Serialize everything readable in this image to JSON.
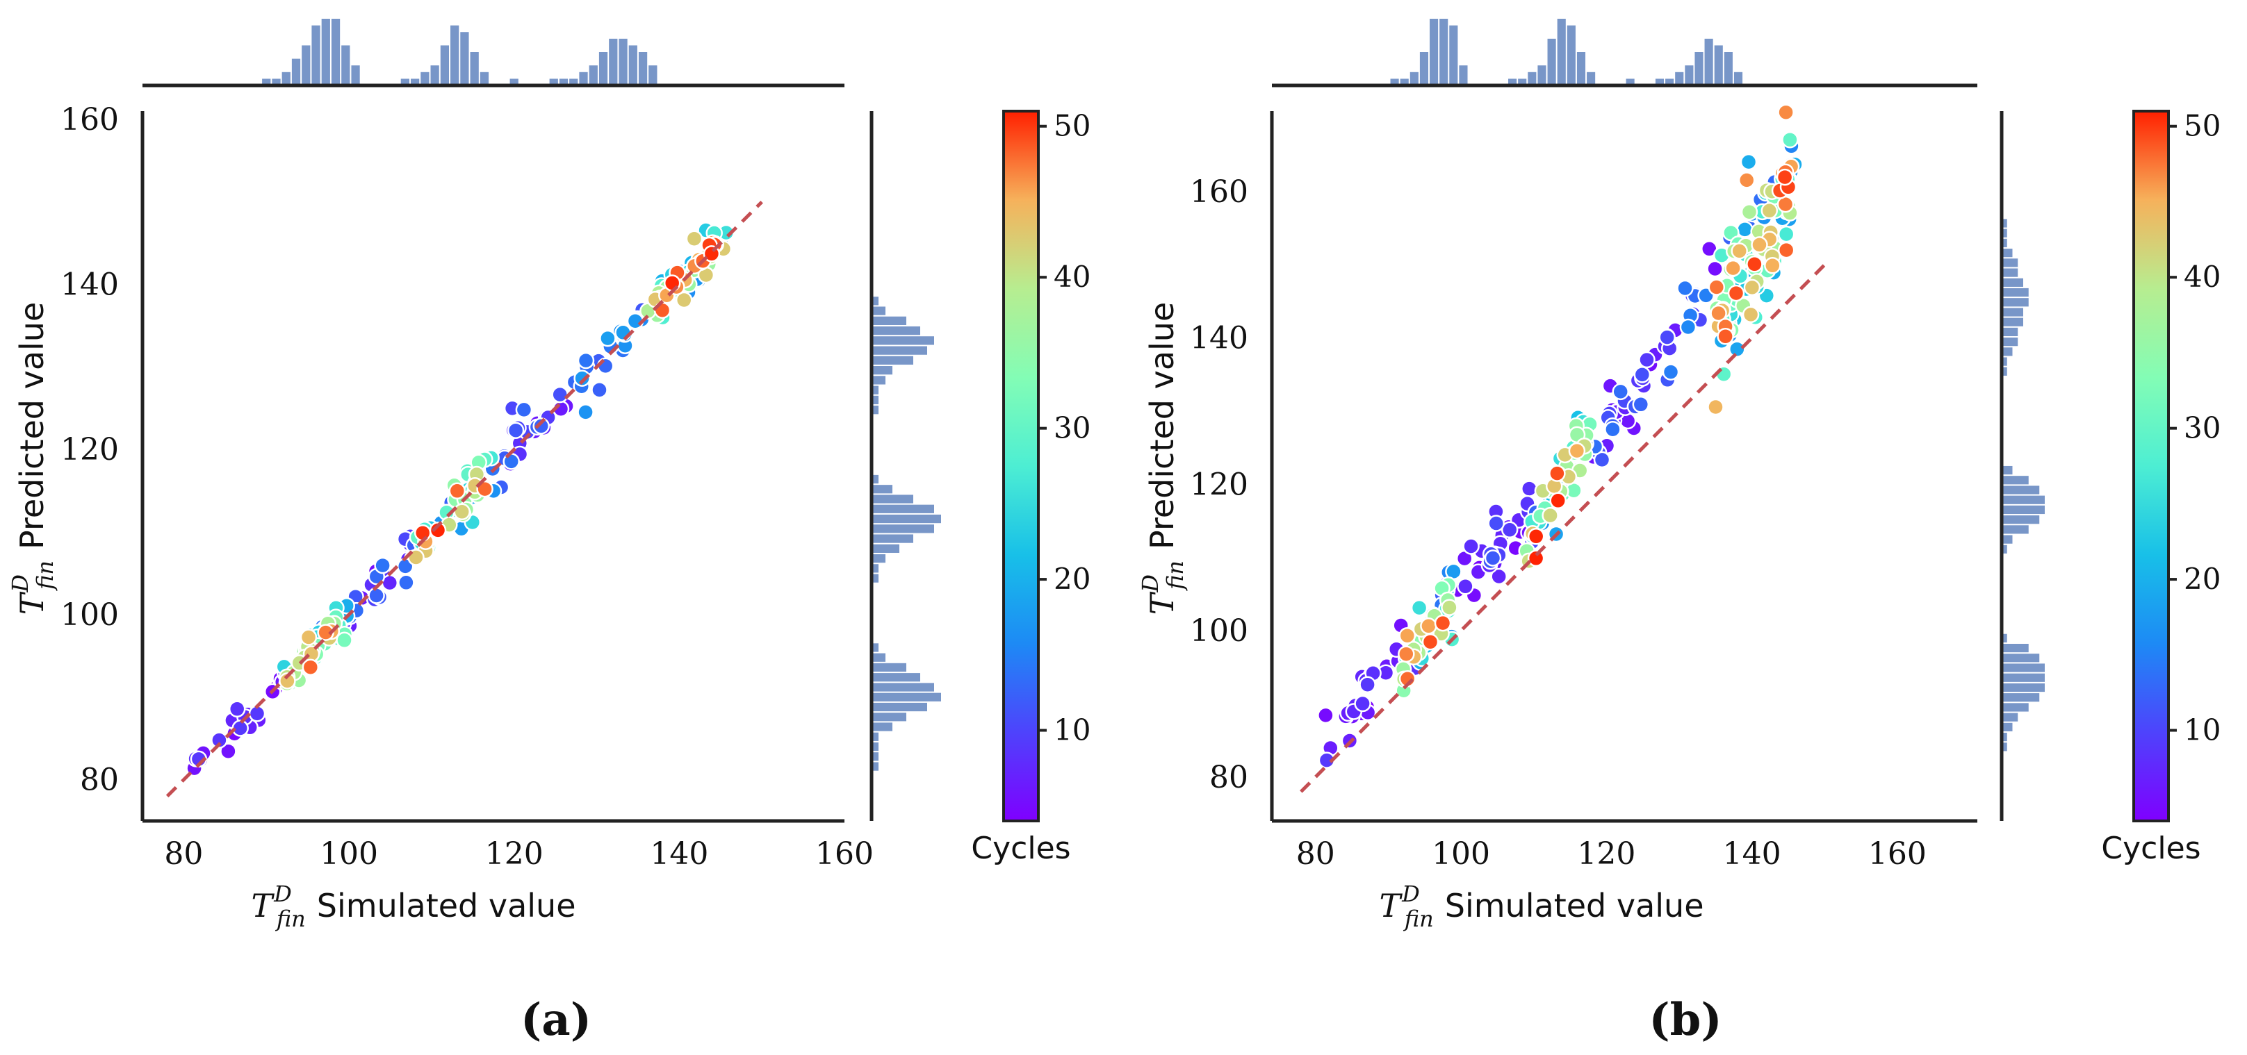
{
  "chart_data": [
    {
      "panel_label": "(a)",
      "type": "scatter",
      "xlabel_symbol": "T",
      "xlabel_sup": "D",
      "xlabel_sub": "fin",
      "xlabel_text": "Simulated value",
      "ylabel_symbol": "T",
      "ylabel_sup": "D",
      "ylabel_sub": "fin",
      "ylabel_text": "Predicted value",
      "xlim": [
        75,
        160
      ],
      "ylim": [
        75,
        161
      ],
      "xticks": [
        80,
        100,
        120,
        140,
        160
      ],
      "yticks": [
        80,
        100,
        120,
        140,
        160
      ],
      "reference_line": {
        "x": [
          78,
          150
        ],
        "y": [
          78,
          150
        ],
        "style": "dashed",
        "color": "#c44e52"
      },
      "colorbar": {
        "label": "Cycles",
        "range": [
          4,
          51
        ],
        "ticks": [
          10,
          20,
          30,
          40,
          50
        ]
      },
      "clusters": [
        {
          "x_range": [
            81,
            92
          ],
          "y_offset": 0,
          "spread": 1.0,
          "cycle_range": [
            4,
            9
          ],
          "count": 22
        },
        {
          "x_range": [
            92,
            100
          ],
          "y_offset": 0,
          "spread": 1.1,
          "cycle_range": [
            5,
            51
          ],
          "count": 60
        },
        {
          "x_range": [
            100,
            108
          ],
          "y_offset": 0,
          "spread": 1.4,
          "cycle_range": [
            5,
            14
          ],
          "count": 25
        },
        {
          "x_range": [
            108,
            118
          ],
          "y_offset": 0,
          "spread": 1.3,
          "cycle_range": [
            8,
            51
          ],
          "count": 55
        },
        {
          "x_range": [
            118,
            128
          ],
          "y_offset": 0,
          "spread": 1.8,
          "cycle_range": [
            6,
            14
          ],
          "count": 25
        },
        {
          "x_range": [
            128,
            136
          ],
          "y_offset": 0,
          "spread": 1.6,
          "cycle_range": [
            10,
            18
          ],
          "count": 25
        },
        {
          "x_range": [
            136,
            146
          ],
          "y_offset": 0,
          "spread": 1.2,
          "cycle_range": [
            16,
            51
          ],
          "count": 60
        }
      ],
      "top_hist": {
        "bin_start": 75,
        "bin_width": 1.2,
        "counts": [
          0,
          0,
          0,
          0,
          0,
          0,
          0,
          0,
          0,
          0,
          0,
          0,
          1,
          1,
          2,
          4,
          6,
          9,
          10,
          10,
          6,
          3,
          0,
          0,
          0,
          0,
          1,
          1,
          2,
          3,
          6,
          9,
          8,
          5,
          2,
          0,
          0,
          1,
          0,
          0,
          0,
          1,
          1,
          1,
          2,
          3,
          5,
          7,
          7,
          6,
          5,
          3,
          0,
          0,
          0,
          0,
          0,
          0,
          0,
          0
        ]
      },
      "right_hist": {
        "bin_start": 75,
        "bin_width": 1.2,
        "counts": [
          0,
          0,
          0,
          0,
          0,
          1,
          1,
          1,
          1,
          3,
          5,
          8,
          10,
          9,
          7,
          5,
          2,
          1,
          0,
          0,
          0,
          0,
          0,
          0,
          1,
          1,
          2,
          4,
          6,
          9,
          10,
          9,
          6,
          3,
          1,
          0,
          0,
          0,
          0,
          0,
          0,
          1,
          1,
          1,
          2,
          3,
          6,
          8,
          9,
          7,
          5,
          2,
          1,
          0,
          0,
          0,
          0,
          0,
          0,
          0,
          0
        ]
      }
    },
    {
      "panel_label": "(b)",
      "type": "scatter",
      "xlabel_symbol": "T",
      "xlabel_sup": "D",
      "xlabel_sub": "fin",
      "xlabel_text": "Simulated value",
      "ylabel_symbol": "T",
      "ylabel_sup": "D",
      "ylabel_sub": "fin",
      "ylabel_text": "Predicted value",
      "xlim": [
        74,
        171
      ],
      "ylim": [
        74,
        171
      ],
      "xticks": [
        80,
        100,
        120,
        140,
        160
      ],
      "yticks": [
        80,
        100,
        120,
        140,
        160
      ],
      "reference_line": {
        "x": [
          78,
          150
        ],
        "y": [
          78,
          150
        ],
        "style": "dashed",
        "color": "#c44e52"
      },
      "colorbar": {
        "label": "Cycles",
        "range": [
          4,
          51
        ],
        "ticks": [
          10,
          20,
          30,
          40,
          50
        ]
      },
      "clusters": [
        {
          "x_range": [
            81,
            92
          ],
          "y_offset": 4,
          "spread": 1.6,
          "cycle_range": [
            4,
            9
          ],
          "count": 25
        },
        {
          "x_range": [
            92,
            99
          ],
          "y_offset": 4,
          "spread": 2.2,
          "cycle_range": [
            5,
            51
          ],
          "count": 60
        },
        {
          "x_range": [
            99,
            110
          ],
          "y_offset": 6,
          "spread": 2.5,
          "cycle_range": [
            4,
            12
          ],
          "count": 30
        },
        {
          "x_range": [
            109,
            118
          ],
          "y_offset": 7,
          "spread": 2.6,
          "cycle_range": [
            8,
            51
          ],
          "count": 60
        },
        {
          "x_range": [
            118,
            135
          ],
          "y_offset": 10,
          "spread": 2.8,
          "cycle_range": [
            5,
            16
          ],
          "count": 45
        },
        {
          "x_range": [
            135,
            146
          ],
          "y_offset": 12,
          "spread": 5.0,
          "cycle_range": [
            12,
            51
          ],
          "count": 110
        }
      ],
      "top_hist": {
        "bin_start": 74,
        "bin_width": 1.35,
        "counts": [
          0,
          0,
          0,
          0,
          0,
          0,
          0,
          0,
          0,
          0,
          0,
          0,
          1,
          1,
          2,
          5,
          10,
          10,
          9,
          3,
          0,
          0,
          0,
          0,
          1,
          1,
          2,
          3,
          7,
          10,
          9,
          5,
          2,
          0,
          0,
          0,
          1,
          0,
          0,
          1,
          1,
          2,
          3,
          5,
          7,
          6,
          5,
          2,
          0,
          0,
          0,
          0,
          0,
          0,
          0,
          0,
          0,
          0,
          0,
          0,
          0,
          0,
          0,
          0,
          0,
          0,
          0,
          0,
          0,
          0,
          0,
          0
        ]
      },
      "right_hist": {
        "bin_start": 74,
        "bin_width": 1.35,
        "counts": [
          0,
          0,
          0,
          0,
          0,
          0,
          0,
          1,
          1,
          2,
          3,
          5,
          7,
          8,
          8,
          8,
          7,
          5,
          1,
          0,
          0,
          0,
          0,
          0,
          0,
          0,
          0,
          1,
          2,
          5,
          7,
          8,
          8,
          7,
          5,
          2,
          0,
          0,
          0,
          0,
          0,
          0,
          0,
          0,
          0,
          1,
          1,
          2,
          3,
          3,
          4,
          4,
          5,
          5,
          4,
          3,
          3,
          2,
          1,
          1,
          1,
          0,
          0,
          0,
          0,
          0,
          0,
          0,
          0,
          0,
          0
        ]
      }
    }
  ]
}
